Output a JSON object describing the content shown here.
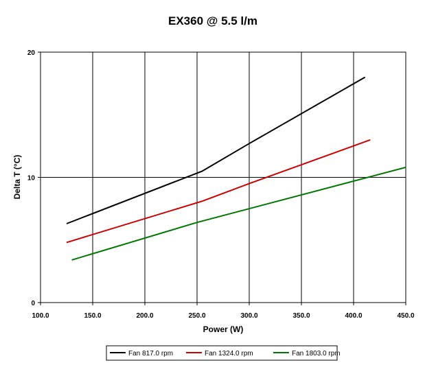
{
  "chart_data": {
    "type": "line",
    "title": "EX360 @ 5.5 l/m",
    "xlabel": "Power (W)",
    "ylabel": "Delta T (°C)",
    "xlim": [
      100.0,
      450.0
    ],
    "ylim": [
      0,
      20
    ],
    "x_ticks": [
      "100.0",
      "150.0",
      "200.0",
      "250.0",
      "300.0",
      "350.0",
      "400.0",
      "450.0"
    ],
    "y_ticks": [
      "0",
      "10",
      "20"
    ],
    "grid": true,
    "legend_position": "bottom",
    "series": [
      {
        "name": "Fan 817.0 rpm",
        "color": "#000000",
        "points": [
          [
            125,
            6.3
          ],
          [
            255,
            10.5
          ],
          [
            300,
            12.7
          ],
          [
            411,
            18.0
          ]
        ]
      },
      {
        "name": "Fan 1324.0 rpm",
        "color": "#cc0000",
        "points": [
          [
            125,
            4.8
          ],
          [
            255,
            8.1
          ],
          [
            300,
            9.5
          ],
          [
            416,
            13.0
          ]
        ]
      },
      {
        "name": "Fan 1803.0 rpm",
        "color": "#007700",
        "points": [
          [
            130,
            3.4
          ],
          [
            250,
            6.4
          ],
          [
            450,
            10.8
          ]
        ]
      }
    ]
  }
}
